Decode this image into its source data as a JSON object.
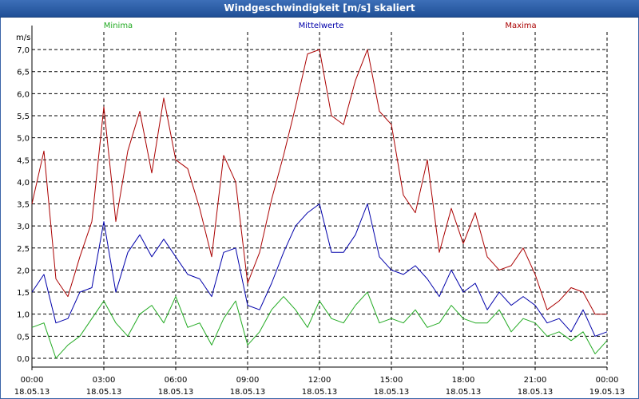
{
  "window": {
    "title": "Windgeschwindigkeit [m/s] skaliert"
  },
  "chart_data": {
    "type": "line",
    "title": "Windgeschwindigkeit [m/s] skaliert",
    "ylabel": "m/s",
    "ylim": [
      -0.2,
      7.4
    ],
    "yticks": [
      "0,0",
      "0,5",
      "1,0",
      "1,5",
      "2,0",
      "2,5",
      "3,0",
      "3,5",
      "4,0",
      "4,5",
      "5,0",
      "5,5",
      "6,0",
      "6,5",
      "7,0"
    ],
    "yticks_values": [
      0,
      0.5,
      1,
      1.5,
      2,
      2.5,
      3,
      3.5,
      4,
      4.5,
      5,
      5.5,
      6,
      6.5,
      7
    ],
    "x_hours_range": [
      0,
      24
    ],
    "xticks": [
      {
        "time": "00:00",
        "date": "18.05.13"
      },
      {
        "time": "03:00",
        "date": "18.05.13"
      },
      {
        "time": "06:00",
        "date": "18.05.13"
      },
      {
        "time": "09:00",
        "date": "18.05.13"
      },
      {
        "time": "12:00",
        "date": "18.05.13"
      },
      {
        "time": "15:00",
        "date": "18.05.13"
      },
      {
        "time": "18:00",
        "date": "18.05.13"
      },
      {
        "time": "21:00",
        "date": "18.05.13"
      },
      {
        "time": "00:00",
        "date": "19.05.13"
      }
    ],
    "grid": true,
    "legend_placement": "top",
    "series": [
      {
        "name": "Minima",
        "color": "#22aa22",
        "x_hours": [
          0,
          0.5,
          1,
          1.5,
          2,
          2.5,
          3,
          3.5,
          4,
          4.5,
          5,
          5.5,
          6,
          6.5,
          7,
          7.5,
          8,
          8.5,
          9,
          9.5,
          10,
          10.5,
          11,
          11.5,
          12,
          12.5,
          13,
          13.5,
          14,
          14.5,
          15,
          15.5,
          16,
          16.5,
          17,
          17.5,
          18,
          18.5,
          19,
          19.5,
          20,
          20.5,
          21,
          21.5,
          22,
          22.5,
          23,
          23.5,
          24
        ],
        "values": [
          0.7,
          0.8,
          0.0,
          0.3,
          0.5,
          0.9,
          1.3,
          0.8,
          0.5,
          1.0,
          1.2,
          0.8,
          1.4,
          0.7,
          0.8,
          0.3,
          0.9,
          1.3,
          0.3,
          0.6,
          1.1,
          1.4,
          1.1,
          0.7,
          1.3,
          0.9,
          0.8,
          1.2,
          1.5,
          0.8,
          0.9,
          0.8,
          1.1,
          0.7,
          0.8,
          1.2,
          0.9,
          0.8,
          0.8,
          1.1,
          0.6,
          0.9,
          0.8,
          0.5,
          0.6,
          0.4,
          0.6,
          0.1,
          0.4
        ]
      },
      {
        "name": "Mittelwerte",
        "color": "#0000aa",
        "x_hours": [
          0,
          0.5,
          1,
          1.5,
          2,
          2.5,
          3,
          3.5,
          4,
          4.5,
          5,
          5.5,
          6,
          6.5,
          7,
          7.5,
          8,
          8.5,
          9,
          9.5,
          10,
          10.5,
          11,
          11.5,
          12,
          12.5,
          13,
          13.5,
          14,
          14.5,
          15,
          15.5,
          16,
          16.5,
          17,
          17.5,
          18,
          18.5,
          19,
          19.5,
          20,
          20.5,
          21,
          21.5,
          22,
          22.5,
          23,
          23.5,
          24
        ],
        "values": [
          1.5,
          1.9,
          0.8,
          0.9,
          1.5,
          1.6,
          3.1,
          1.5,
          2.4,
          2.8,
          2.3,
          2.7,
          2.3,
          1.9,
          1.8,
          1.4,
          2.4,
          2.5,
          1.2,
          1.1,
          1.7,
          2.4,
          3.0,
          3.3,
          3.5,
          2.4,
          2.4,
          2.8,
          3.5,
          2.3,
          2.0,
          1.9,
          2.1,
          1.8,
          1.4,
          2.0,
          1.5,
          1.7,
          1.1,
          1.5,
          1.2,
          1.4,
          1.2,
          0.8,
          0.9,
          0.6,
          1.1,
          0.5,
          0.6
        ]
      },
      {
        "name": "Maxima",
        "color": "#aa0000",
        "x_hours": [
          0,
          0.5,
          1,
          1.5,
          2,
          2.5,
          3,
          3.5,
          4,
          4.5,
          5,
          5.5,
          6,
          6.5,
          7,
          7.5,
          8,
          8.5,
          9,
          9.5,
          10,
          10.5,
          11,
          11.5,
          12,
          12.5,
          13,
          13.5,
          14,
          14.5,
          15,
          15.5,
          16,
          16.5,
          17,
          17.5,
          18,
          18.5,
          19,
          19.5,
          20,
          20.5,
          21,
          21.5,
          22,
          22.5,
          23,
          23.5,
          24
        ],
        "values": [
          3.5,
          4.7,
          1.8,
          1.4,
          2.3,
          3.1,
          5.7,
          3.1,
          4.7,
          5.6,
          4.2,
          5.9,
          4.5,
          4.3,
          3.4,
          2.3,
          4.6,
          4.0,
          1.7,
          2.4,
          3.6,
          4.6,
          5.7,
          6.9,
          7.0,
          5.5,
          5.3,
          6.3,
          7.0,
          5.6,
          5.3,
          3.7,
          3.3,
          4.5,
          2.4,
          3.4,
          2.6,
          3.3,
          2.3,
          2.0,
          2.1,
          2.5,
          1.9,
          1.1,
          1.3,
          1.6,
          1.5,
          1.0,
          1.0
        ]
      }
    ]
  }
}
